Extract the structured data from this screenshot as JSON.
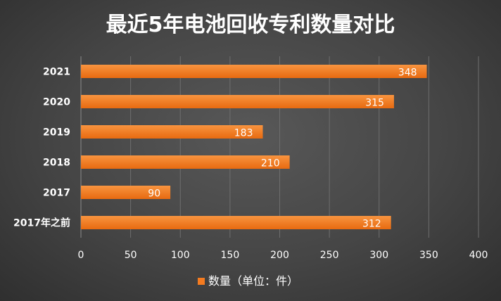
{
  "chart_data": {
    "type": "bar",
    "orientation": "horizontal",
    "title": "最近5年电池回收专利数量对比",
    "categories": [
      "2021",
      "2020",
      "2019",
      "2018",
      "2017",
      "2017年之前"
    ],
    "series": [
      {
        "name": "数量（单位：件）",
        "values": [
          348,
          315,
          183,
          210,
          90,
          312
        ],
        "color": "#F47B20"
      }
    ],
    "xlim": [
      0,
      400
    ],
    "xticks": [
      0,
      50,
      100,
      150,
      200,
      250,
      300,
      350,
      400
    ],
    "grid": true,
    "legend_position": "bottom",
    "data_labels": true
  }
}
